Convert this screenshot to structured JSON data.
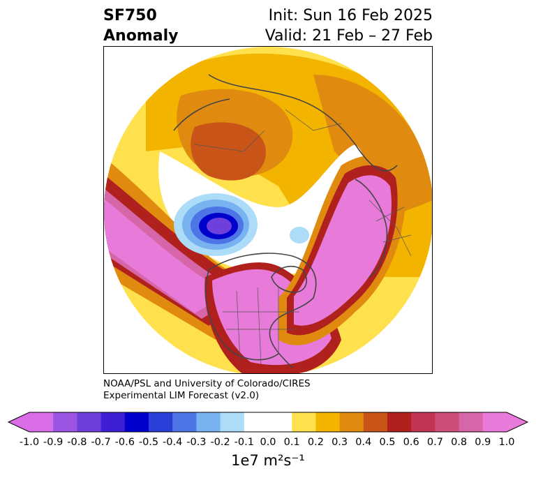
{
  "header": {
    "variable": "SF750",
    "field": "Anomaly",
    "init": "Init: Sun 16 Feb 2025",
    "valid": "Valid: 21 Feb – 27 Feb"
  },
  "credit": {
    "line1": "NOAA/PSL and University of Colorado/CIRES",
    "line2": "Experimental LIM Forecast (v2.0)"
  },
  "map": {
    "projection": "north-polar-stereographic",
    "field": "750 hPa streamfunction anomaly",
    "features": [
      {
        "name": "strong-positive-anomaly-north-america",
        "level": "1.0"
      },
      {
        "name": "strong-positive-anomaly-north-atlantic-europe",
        "level": "1.0"
      },
      {
        "name": "strong-positive-anomaly-north-pacific",
        "level": "1.0"
      },
      {
        "name": "negative-anomaly-alaska-bering",
        "level": "-0.8"
      },
      {
        "name": "moderate-positive-anomaly-siberia",
        "level": "0.4"
      }
    ]
  },
  "colorbar": {
    "levels": [
      "-1.0",
      "-0.9",
      "-0.8",
      "-0.7",
      "-0.6",
      "-0.5",
      "-0.4",
      "-0.3",
      "-0.2",
      "-0.1",
      "0.0",
      "0.1",
      "0.2",
      "0.3",
      "0.4",
      "0.5",
      "0.6",
      "0.7",
      "0.8",
      "0.9",
      "1.0"
    ],
    "colors": [
      "#d96de8",
      "#9c55e2",
      "#6f3fdb",
      "#3e1fd6",
      "#0000cc",
      "#2a3fd8",
      "#4e75e6",
      "#78b2f0",
      "#acdcf8",
      "#ffffff",
      "#ffffff",
      "#ffe14d",
      "#f3b400",
      "#e08a10",
      "#c95417",
      "#b0211e",
      "#c33552",
      "#cc4d78",
      "#d766a8",
      "#e87ada"
    ],
    "extend": "both",
    "units_text": "1e7 m²s⁻¹"
  }
}
